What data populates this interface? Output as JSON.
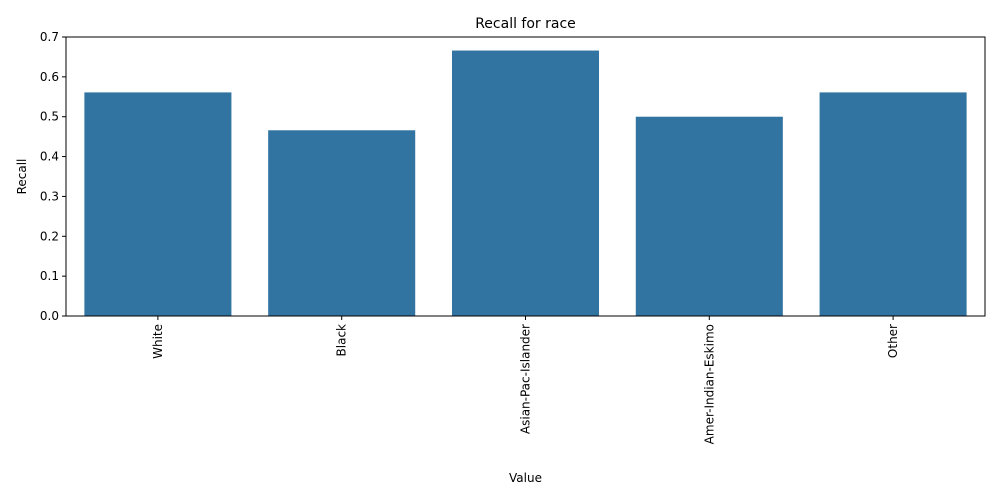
{
  "chart_data": {
    "type": "bar",
    "title": "Recall for race",
    "xlabel": "Value",
    "ylabel": "Recall",
    "categories": [
      "White",
      "Black",
      "Asian-Pac-Islander",
      "Amer-Indian-Eskimo",
      "Other"
    ],
    "values": [
      0.561,
      0.466,
      0.666,
      0.5,
      0.561
    ],
    "ylim": [
      0,
      0.7
    ],
    "yticks": [
      "0.0",
      "0.1",
      "0.2",
      "0.3",
      "0.4",
      "0.5",
      "0.6",
      "0.7"
    ],
    "grid": false,
    "bar_color": "#3274a1",
    "x_tick_rotation": "vertical"
  }
}
